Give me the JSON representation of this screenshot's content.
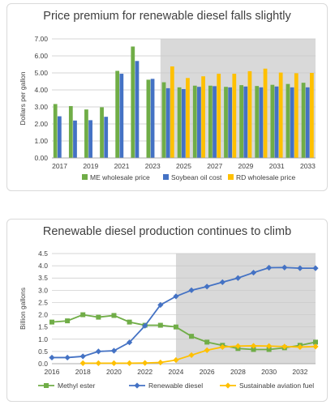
{
  "chart_data": [
    {
      "type": "bar",
      "title": "Price premium for renewable diesel falls slightly",
      "ylabel": "Dollars per gallon",
      "xlabel": "",
      "ylim": [
        0,
        7
      ],
      "yticks": [
        "0.00",
        "1.00",
        "2.00",
        "3.00",
        "4.00",
        "5.00",
        "6.00",
        "7.00"
      ],
      "categories": [
        2017,
        2018,
        2019,
        2020,
        2021,
        2022,
        2023,
        2024,
        2025,
        2026,
        2027,
        2028,
        2029,
        2030,
        2031,
        2032,
        2033
      ],
      "xtick_labels": [
        "2017",
        "2019",
        "2021",
        "2023",
        "2025",
        "2027",
        "2029",
        "2031",
        "2033"
      ],
      "projection_shade_from": 2024,
      "grid": true,
      "legend_position": "bottom",
      "series": [
        {
          "name": "ME wholesale price",
          "color": "#70ad47",
          "values": [
            3.17,
            3.05,
            2.85,
            2.98,
            5.12,
            6.55,
            4.6,
            4.45,
            4.15,
            4.25,
            4.25,
            4.18,
            4.28,
            4.23,
            4.3,
            4.35,
            4.42
          ]
        },
        {
          "name": "Soybean oil cost",
          "color": "#4472c4",
          "values": [
            2.45,
            2.2,
            2.22,
            2.42,
            4.95,
            5.7,
            4.65,
            4.1,
            4.05,
            4.18,
            4.22,
            4.15,
            4.2,
            4.15,
            4.2,
            4.15,
            4.15
          ]
        },
        {
          "name": "RD wholesale price",
          "color": "#ffc000",
          "values": [
            null,
            null,
            null,
            null,
            null,
            null,
            null,
            5.38,
            4.7,
            4.8,
            4.95,
            4.95,
            5.1,
            5.25,
            5.02,
            4.98,
            5.0
          ]
        }
      ]
    },
    {
      "type": "line",
      "title": "Renewable diesel production continues to climb",
      "ylabel": "Billion gallons",
      "xlabel": "",
      "ylim": [
        0,
        4.5
      ],
      "yticks": [
        "0.0",
        "0.5",
        "1.0",
        "1.5",
        "2.0",
        "2.5",
        "3.0",
        "3.5",
        "4.0",
        "4.5"
      ],
      "x": [
        2016,
        2017,
        2018,
        2019,
        2020,
        2021,
        2022,
        2023,
        2024,
        2025,
        2026,
        2027,
        2028,
        2029,
        2030,
        2031,
        2032,
        2033
      ],
      "xtick_labels": [
        "2016",
        "2018",
        "2020",
        "2022",
        "2024",
        "2026",
        "2028",
        "2030",
        "2032"
      ],
      "projection_shade_from": 2024,
      "grid": true,
      "legend_position": "bottom",
      "series": [
        {
          "name": "Methyl ester",
          "color": "#70ad47",
          "marker": "square",
          "values": [
            1.7,
            1.75,
            2.0,
            1.9,
            1.97,
            1.7,
            1.57,
            1.57,
            1.5,
            1.12,
            0.88,
            0.75,
            0.62,
            0.58,
            0.58,
            0.65,
            0.75,
            0.88
          ]
        },
        {
          "name": "Renewable diesel",
          "color": "#4472c4",
          "marker": "diamond",
          "values": [
            0.25,
            0.25,
            0.3,
            0.5,
            0.53,
            0.87,
            1.55,
            2.4,
            2.75,
            3.0,
            3.15,
            3.33,
            3.5,
            3.72,
            3.92,
            3.93,
            3.9,
            3.9
          ]
        },
        {
          "name": "Sustainable aviation fuel",
          "color": "#ffc000",
          "marker": "diamond",
          "values": [
            null,
            null,
            0.02,
            0.02,
            0.02,
            0.02,
            0.03,
            0.05,
            0.15,
            0.35,
            0.55,
            0.68,
            0.72,
            0.73,
            0.72,
            0.7,
            0.68,
            0.7
          ]
        }
      ]
    }
  ]
}
